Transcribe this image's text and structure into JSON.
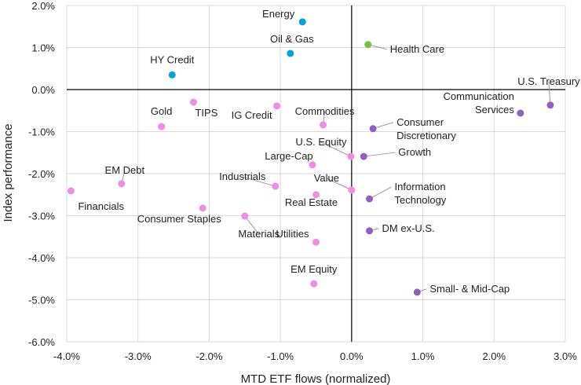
{
  "chart_data": {
    "type": "scatter",
    "title": "",
    "xlabel": "MTD ETF flows (normalized)",
    "ylabel": "Index performance",
    "xlim": [
      -4.0,
      3.0
    ],
    "ylim": [
      -6.0,
      2.0
    ],
    "x_ticks": [
      "-4.0%",
      "-3.0%",
      "-2.0%",
      "-1.0%",
      "0.0%",
      "1.0%",
      "2.0%",
      "3.0%"
    ],
    "x_tick_values": [
      -4,
      -3,
      -2,
      -1,
      0,
      1,
      2,
      3
    ],
    "y_ticks": [
      "2.0%",
      "1.0%",
      "0.0%",
      "-1.0%",
      "-2.0%",
      "-3.0%",
      "-4.0%",
      "-5.0%",
      "-6.0%"
    ],
    "y_tick_values": [
      2,
      1,
      0,
      -1,
      -2,
      -3,
      -4,
      -5,
      -6
    ],
    "grid": true,
    "legend": "none",
    "colors": {
      "blue": "#00a3e0",
      "green": "#78c23a",
      "pink": "#f08de0",
      "purple": "#8f5fc2"
    },
    "points": [
      {
        "label": "Energy",
        "x": -0.69,
        "y": 1.61,
        "color": "blue"
      },
      {
        "label": "Oil & Gas",
        "x": -0.86,
        "y": 0.86,
        "color": "blue"
      },
      {
        "label": "Health Care",
        "x": 0.23,
        "y": 1.07,
        "color": "green"
      },
      {
        "label": "HY Credit",
        "x": -2.52,
        "y": 0.35,
        "color": "blue"
      },
      {
        "label": "TIPS",
        "x": -2.22,
        "y": -0.3,
        "color": "pink"
      },
      {
        "label": "IG Credit",
        "x": -1.05,
        "y": -0.39,
        "color": "pink"
      },
      {
        "label": "Gold",
        "x": -2.67,
        "y": -0.88,
        "color": "pink"
      },
      {
        "label": "Commodities",
        "x": -0.4,
        "y": -0.84,
        "color": "pink"
      },
      {
        "label": "Consumer Discretionary",
        "x": 0.3,
        "y": -0.93,
        "color": "purple"
      },
      {
        "label": "U.S. Treasury",
        "x": 2.79,
        "y": -0.37,
        "color": "purple"
      },
      {
        "label": "Communication Services",
        "x": 2.37,
        "y": -0.56,
        "color": "purple"
      },
      {
        "label": "U.S. Equity",
        "x": -0.01,
        "y": -1.59,
        "color": "pink"
      },
      {
        "label": "Growth",
        "x": 0.17,
        "y": -1.59,
        "color": "purple"
      },
      {
        "label": "Large-Cap",
        "x": -0.55,
        "y": -1.79,
        "color": "pink"
      },
      {
        "label": "Industrials",
        "x": -1.07,
        "y": -2.3,
        "color": "pink"
      },
      {
        "label": "Value",
        "x": 0.0,
        "y": -2.39,
        "color": "pink"
      },
      {
        "label": "Real Estate",
        "x": -0.5,
        "y": -2.5,
        "color": "pink"
      },
      {
        "label": "Information Technology",
        "x": 0.25,
        "y": -2.6,
        "color": "purple"
      },
      {
        "label": "EM Debt",
        "x": -3.23,
        "y": -2.24,
        "color": "pink"
      },
      {
        "label": "Financials",
        "x": -3.94,
        "y": -2.41,
        "color": "pink"
      },
      {
        "label": "Consumer Staples",
        "x": -2.09,
        "y": -2.82,
        "color": "pink"
      },
      {
        "label": "Materials",
        "x": -1.5,
        "y": -3.01,
        "color": "pink"
      },
      {
        "label": "Utilities",
        "x": -0.5,
        "y": -3.63,
        "color": "pink"
      },
      {
        "label": "DM ex-U.S.",
        "x": 0.25,
        "y": -3.36,
        "color": "purple"
      },
      {
        "label": "EM Equity",
        "x": -0.53,
        "y": -4.62,
        "color": "pink"
      },
      {
        "label": "Small- & Mid-Cap",
        "x": 0.92,
        "y": -4.82,
        "color": "purple"
      }
    ]
  }
}
